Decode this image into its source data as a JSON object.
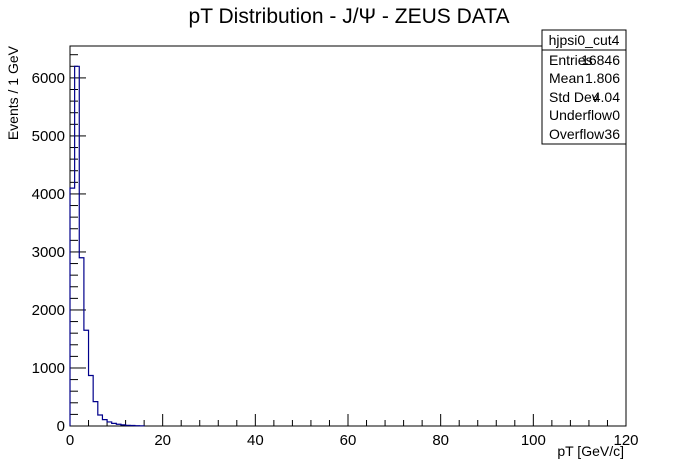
{
  "chart_data": {
    "type": "histogram",
    "title": "pT Distribution - J/Ψ - ZEUS DATA",
    "xlabel": "pT [GeV/c]",
    "ylabel": "Events / 1 GeV",
    "xlim": [
      0,
      120
    ],
    "ylim": [
      0,
      6550
    ],
    "x_ticks": [
      0,
      20,
      40,
      60,
      80,
      100,
      120
    ],
    "y_ticks": [
      0,
      1000,
      2000,
      3000,
      4000,
      5000,
      6000
    ],
    "bin_width": 1,
    "bin_low_edges": [
      0,
      1,
      2,
      3,
      4,
      5,
      6,
      7,
      8,
      9,
      10,
      11,
      12,
      13,
      14,
      15
    ],
    "values": [
      4100,
      6200,
      2900,
      1650,
      870,
      420,
      190,
      110,
      70,
      45,
      30,
      20,
      12,
      8,
      5,
      3
    ],
    "line_color": "#00008b",
    "grid": false,
    "stats_box": {
      "title": "hjpsi0_cut4",
      "placement": "top-right",
      "rows": [
        {
          "label": "Entries",
          "value": "16846"
        },
        {
          "label": "Mean",
          "value": "1.806"
        },
        {
          "label": "Std Dev",
          "value": "4.04"
        },
        {
          "label": "Underflow",
          "value": "0"
        },
        {
          "label": "Overflow",
          "value": "36"
        }
      ]
    }
  }
}
